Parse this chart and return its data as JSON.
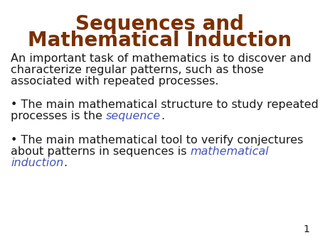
{
  "title_line1": "Sequences and",
  "title_line2": "Mathematical Induction",
  "title_color": "#7B3000",
  "body_color": "#1a1a1a",
  "highlight_color": "#4455BB",
  "background_color": "#FFFFFF",
  "page_number": "1",
  "title_fontsize": 20,
  "body_fontsize": 11.5,
  "figwidth": 4.5,
  "figheight": 3.38,
  "dpi": 100
}
